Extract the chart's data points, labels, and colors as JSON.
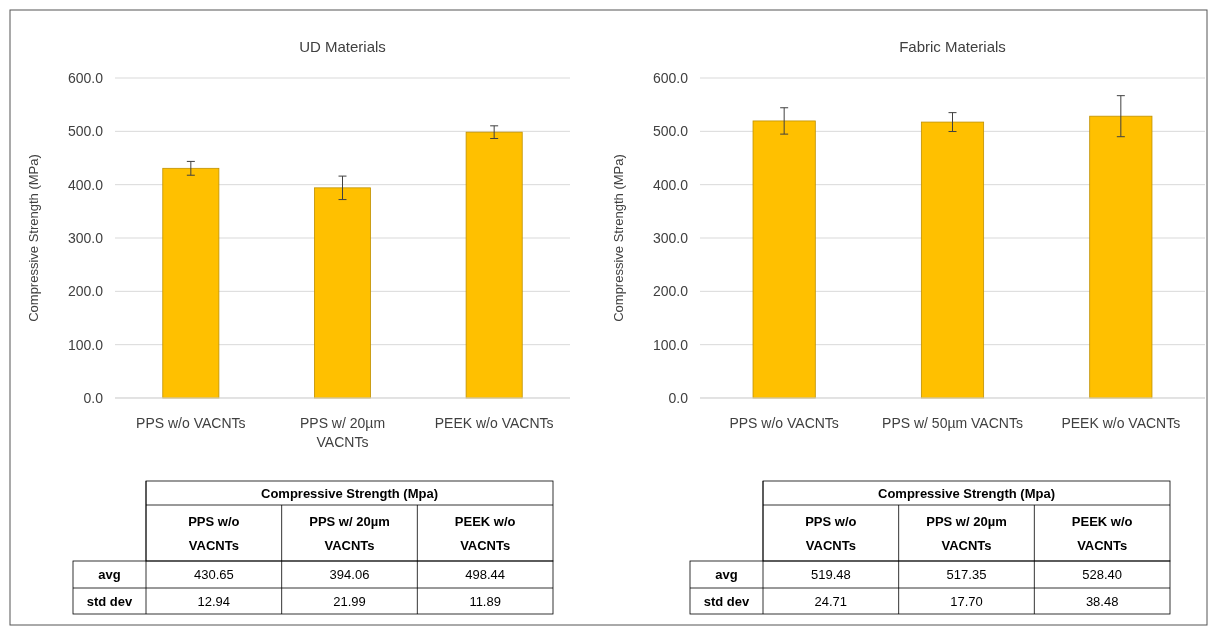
{
  "chart_data": [
    {
      "type": "bar",
      "title": "UD Materials",
      "ylabel": "Compressive Strength (MPa)",
      "categories": [
        "PPS w/o VACNTs",
        "PPS w/ 20µm VACNTs",
        "PEEK w/o VACNTs"
      ],
      "values": [
        430.65,
        394.06,
        498.44
      ],
      "errors": [
        12.94,
        21.99,
        11.89
      ],
      "value_labels": [
        "430.65",
        "394.06",
        "498.44"
      ],
      "color": "#ffc000",
      "ylim": [
        0,
        600
      ],
      "yticks": [
        {
          "value": 0,
          "label": "0.0"
        },
        {
          "value": 100,
          "label": "100.0"
        },
        {
          "value": 200,
          "label": "200.0"
        },
        {
          "value": 300,
          "label": "300.0"
        },
        {
          "value": 400,
          "label": "400.0"
        },
        {
          "value": 500,
          "label": "500.0"
        },
        {
          "value": 600,
          "label": "600.0"
        }
      ],
      "grid": "y",
      "annotations": [
        "Compressive Strength (Mpa)",
        "PPS w/o VACNTs",
        "PPS w/ 20µm VACNTs",
        "PEEK w/o VACNTs",
        "avg",
        "std dev",
        "12.94",
        "21.99",
        "11.89"
      ]
    },
    {
      "type": "bar",
      "title": "Fabric Materials",
      "ylabel": "Compressive Strength (MPa)",
      "categories": [
        "PPS w/o VACNTs",
        "PPS w/ 50µm VACNTs",
        "PEEK w/o VACNTs"
      ],
      "values": [
        519.48,
        517.35,
        528.4
      ],
      "errors": [
        24.71,
        17.7,
        38.48
      ],
      "value_labels": [
        "519.48",
        "517.35",
        "528.40"
      ],
      "color": "#ffc000",
      "ylim": [
        0,
        600
      ],
      "yticks": [
        {
          "value": 0,
          "label": "0.0"
        },
        {
          "value": 100,
          "label": "100.0"
        },
        {
          "value": 200,
          "label": "200.0"
        },
        {
          "value": 300,
          "label": "300.0"
        },
        {
          "value": 400,
          "label": "400.0"
        },
        {
          "value": 500,
          "label": "500.0"
        },
        {
          "value": 600,
          "label": "600.0"
        }
      ],
      "grid": "y",
      "annotations": [
        "Compressive Strength (Mpa)",
        "PPS w/o VACNTs",
        "PPS w/ 20µm VACNTs",
        "PEEK w/o VACNTs",
        "avg",
        "std dev",
        "24.71",
        "17.70",
        "38.48"
      ]
    }
  ]
}
